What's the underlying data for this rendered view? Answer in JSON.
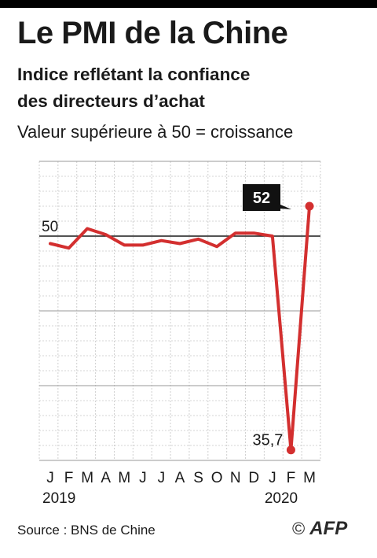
{
  "header": {
    "title": "Le PMI de la Chine",
    "subtitle_line1": "Indice reflétant la confiance",
    "subtitle_line2": "des directeurs d’achat",
    "note": "Valeur supérieure à 50 = croissance"
  },
  "footer": {
    "source": "Source : BNS de Chine",
    "copyright": "©",
    "agency": "AFP"
  },
  "chart_data": {
    "type": "line",
    "title": "Le PMI de la Chine",
    "x": [
      "J",
      "F",
      "M",
      "A",
      "M",
      "J",
      "J",
      "A",
      "S",
      "O",
      "N",
      "D",
      "J",
      "F",
      "M"
    ],
    "year_labels": [
      {
        "index": 0,
        "label": "2019"
      },
      {
        "index": 12,
        "label": "2020"
      }
    ],
    "series": [
      {
        "values": [
          49.5,
          49.2,
          50.5,
          50.1,
          49.4,
          49.4,
          49.7,
          49.5,
          49.8,
          49.3,
          50.2,
          50.2,
          50.0,
          35.7,
          52.0
        ],
        "color": "#d32f2f"
      }
    ],
    "reference_line": {
      "value": 50,
      "label": "50"
    },
    "annotations": [
      {
        "index": 13,
        "label": "35,7",
        "style": "plain"
      },
      {
        "index": 14,
        "label": "52",
        "style": "callout"
      }
    ],
    "ylim": [
      35,
      55
    ],
    "grid": true
  }
}
